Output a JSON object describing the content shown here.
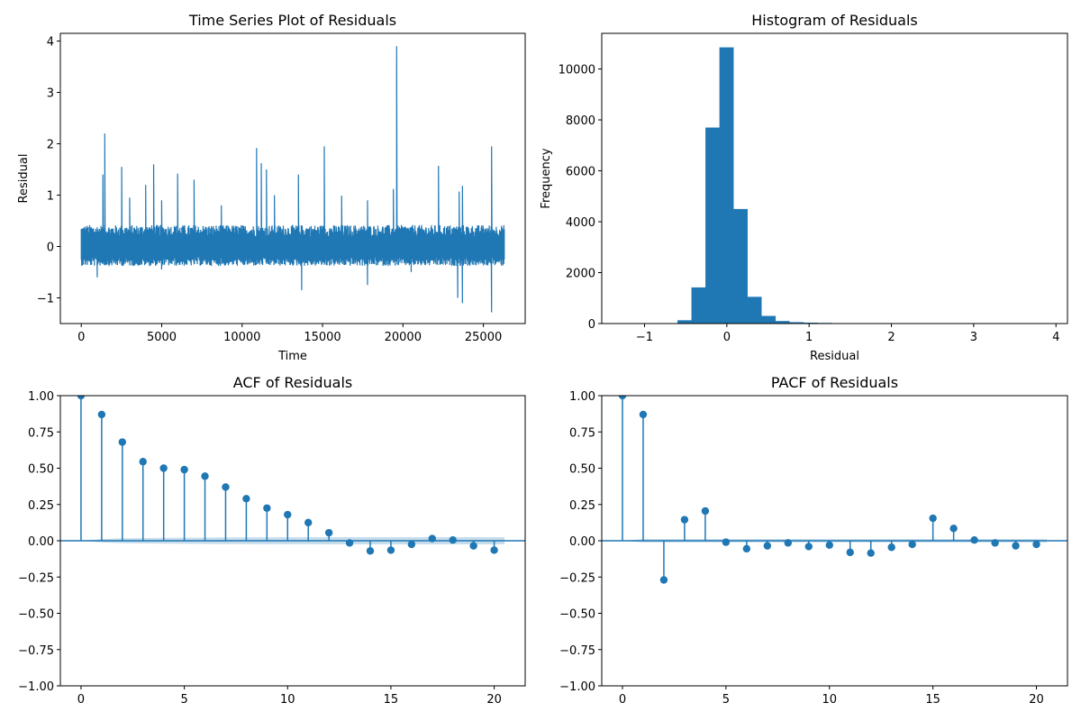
{
  "colors": {
    "series": "#1f77b4",
    "band": "#1f77b4",
    "frame": "#000000"
  },
  "chart_data": [
    {
      "id": "ts",
      "type": "line",
      "title": "Time Series Plot of Residuals",
      "xlabel": "Time",
      "ylabel": "Residual",
      "xlim": [
        -1300,
        27600
      ],
      "ylim": [
        -1.5,
        4.15
      ],
      "xticks": [
        0,
        5000,
        10000,
        15000,
        20000,
        25000
      ],
      "xtick_labels": [
        "0",
        "5000",
        "10000",
        "15000",
        "20000",
        "25000"
      ],
      "yticks": [
        -1,
        0,
        1,
        2,
        3,
        4
      ],
      "ytick_labels": [
        "−1",
        "0",
        "1",
        "2",
        "3",
        "4"
      ],
      "grid": false,
      "baseline": {
        "x_range": [
          0,
          26300
        ],
        "low": -0.38,
        "high": 0.42
      },
      "spikes": [
        {
          "x": 1450,
          "y": 2.2
        },
        {
          "x": 1350,
          "y": 1.4
        },
        {
          "x": 2500,
          "y": 1.55
        },
        {
          "x": 3000,
          "y": 0.95
        },
        {
          "x": 4000,
          "y": 1.2
        },
        {
          "x": 4500,
          "y": 1.6
        },
        {
          "x": 5000,
          "y": 0.9
        },
        {
          "x": 6000,
          "y": 1.42
        },
        {
          "x": 7000,
          "y": 1.3
        },
        {
          "x": 8700,
          "y": 0.8
        },
        {
          "x": 10900,
          "y": 1.92
        },
        {
          "x": 11200,
          "y": 1.62
        },
        {
          "x": 11500,
          "y": 1.5
        },
        {
          "x": 12000,
          "y": 1.0
        },
        {
          "x": 13500,
          "y": 1.4
        },
        {
          "x": 15100,
          "y": 1.95
        },
        {
          "x": 16200,
          "y": 0.99
        },
        {
          "x": 17800,
          "y": 0.9
        },
        {
          "x": 19600,
          "y": 3.9
        },
        {
          "x": 19400,
          "y": 1.12
        },
        {
          "x": 22200,
          "y": 1.57
        },
        {
          "x": 23500,
          "y": 1.07
        },
        {
          "x": 23700,
          "y": 1.18
        },
        {
          "x": 25500,
          "y": 1.95
        },
        {
          "x": 1000,
          "y": -0.6
        },
        {
          "x": 13700,
          "y": -0.85
        },
        {
          "x": 17800,
          "y": -0.75
        },
        {
          "x": 23400,
          "y": -1.0
        },
        {
          "x": 23700,
          "y": -1.1
        },
        {
          "x": 25500,
          "y": -1.28
        },
        {
          "x": 5000,
          "y": -0.45
        },
        {
          "x": 20500,
          "y": -0.5
        }
      ]
    },
    {
      "id": "hist",
      "type": "bar",
      "title": "Histogram of Residuals",
      "xlabel": "Residual",
      "ylabel": "Frequency",
      "xlim": [
        -1.52,
        4.14
      ],
      "ylim": [
        0,
        11400
      ],
      "xticks": [
        -1,
        0,
        1,
        2,
        3,
        4
      ],
      "xtick_labels": [
        "−1",
        "0",
        "1",
        "2",
        "3",
        "4"
      ],
      "yticks": [
        0,
        2000,
        4000,
        6000,
        8000,
        10000
      ],
      "ytick_labels": [
        "0",
        "2000",
        "4000",
        "6000",
        "8000",
        "10000"
      ],
      "grid": false,
      "bin_edges": [
        -1.28,
        -1.11,
        -0.94,
        -0.77,
        -0.6,
        -0.43,
        -0.26,
        -0.09,
        0.08,
        0.25,
        0.42,
        0.59,
        0.76,
        0.93,
        1.1,
        1.27,
        1.44,
        1.61,
        1.78,
        1.95,
        2.12,
        2.29,
        2.46,
        2.63,
        2.8,
        2.97,
        3.14,
        3.31,
        3.48,
        3.65,
        3.82
      ],
      "values": [
        2,
        3,
        6,
        15,
        130,
        1420,
        7700,
        10850,
        4500,
        1050,
        300,
        100,
        55,
        35,
        25,
        15,
        8,
        5,
        4,
        3,
        2,
        1,
        1,
        1,
        1,
        0,
        0,
        0,
        0,
        1
      ]
    },
    {
      "id": "acf",
      "type": "stem",
      "title": "ACF of Residuals",
      "xlabel": "",
      "ylabel": "",
      "xlim": [
        -1,
        21.5
      ],
      "ylim": [
        -1.0,
        1.0
      ],
      "xticks": [
        0,
        5,
        10,
        15,
        20
      ],
      "xtick_labels": [
        "0",
        "5",
        "10",
        "15",
        "20"
      ],
      "yticks": [
        -1.0,
        -0.75,
        -0.5,
        -0.25,
        0.0,
        0.25,
        0.5,
        0.75,
        1.0
      ],
      "ytick_labels": [
        "−1.00",
        "−0.75",
        "−0.50",
        "−0.25",
        "0.00",
        "0.25",
        "0.50",
        "0.75",
        "1.00"
      ],
      "grid": false,
      "lags": [
        0,
        1,
        2,
        3,
        4,
        5,
        6,
        7,
        8,
        9,
        10,
        11,
        12,
        13,
        14,
        15,
        16,
        17,
        18,
        19,
        20
      ],
      "values": [
        1.0,
        0.87,
        0.68,
        0.545,
        0.5,
        0.49,
        0.445,
        0.37,
        0.29,
        0.225,
        0.18,
        0.125,
        0.055,
        -0.015,
        -0.07,
        -0.065,
        -0.025,
        0.015,
        0.005,
        -0.035,
        -0.065
      ],
      "confint": [
        0.0,
        0.012,
        0.017,
        0.019,
        0.02,
        0.021,
        0.022,
        0.023,
        0.023,
        0.024,
        0.024,
        0.024,
        0.025,
        0.025,
        0.025,
        0.025,
        0.025,
        0.025,
        0.025,
        0.025,
        0.025
      ]
    },
    {
      "id": "pacf",
      "type": "stem",
      "title": "PACF of Residuals",
      "xlabel": "",
      "ylabel": "",
      "xlim": [
        -1,
        21.5
      ],
      "ylim": [
        -1.0,
        1.0
      ],
      "xticks": [
        0,
        5,
        10,
        15,
        20
      ],
      "xtick_labels": [
        "0",
        "5",
        "10",
        "15",
        "20"
      ],
      "yticks": [
        -1.0,
        -0.75,
        -0.5,
        -0.25,
        0.0,
        0.25,
        0.5,
        0.75,
        1.0
      ],
      "ytick_labels": [
        "−1.00",
        "−0.75",
        "−0.50",
        "−0.25",
        "0.00",
        "0.25",
        "0.50",
        "0.75",
        "1.00"
      ],
      "grid": false,
      "lags": [
        0,
        1,
        2,
        3,
        4,
        5,
        6,
        7,
        8,
        9,
        10,
        11,
        12,
        13,
        14,
        15,
        16,
        17,
        18,
        19,
        20
      ],
      "values": [
        1.0,
        0.87,
        -0.27,
        0.145,
        0.205,
        -0.01,
        -0.055,
        -0.035,
        -0.015,
        -0.04,
        -0.03,
        -0.08,
        -0.085,
        -0.045,
        -0.025,
        0.155,
        0.085,
        0.005,
        -0.015,
        -0.035,
        -0.025
      ],
      "confint": [
        0.0,
        0.012,
        0.012,
        0.012,
        0.012,
        0.012,
        0.012,
        0.012,
        0.012,
        0.012,
        0.012,
        0.012,
        0.012,
        0.012,
        0.012,
        0.012,
        0.012,
        0.012,
        0.012,
        0.012,
        0.012
      ]
    }
  ]
}
